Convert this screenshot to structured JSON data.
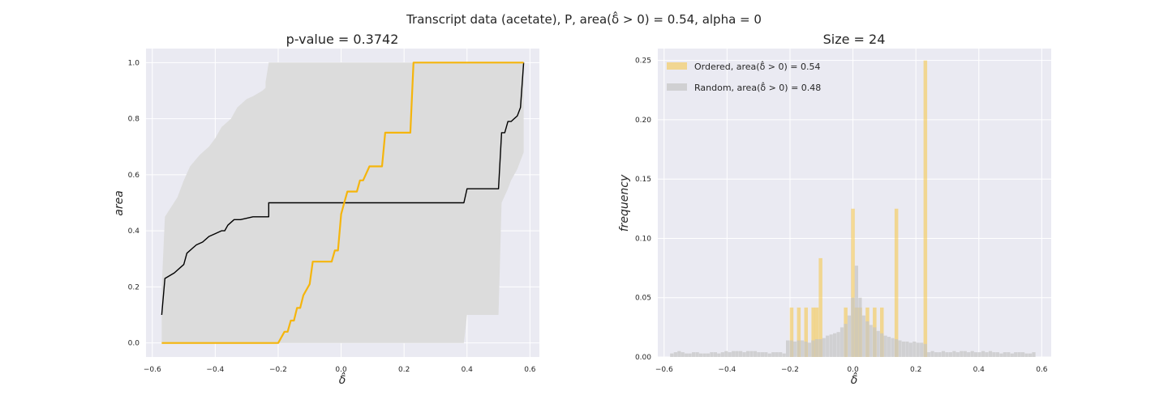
{
  "suptitle": "Transcript data (acetate), P, area(δ̂ > 0) = 0.54, alpha = 0",
  "chart_data": [
    {
      "type": "line",
      "title": "p-value = 0.3742",
      "xlabel": "δ̂",
      "ylabel": "area",
      "xlim": [
        -0.62,
        0.63
      ],
      "ylim": [
        -0.05,
        1.05
      ],
      "xticks": [
        "−0.6",
        "−0.4",
        "−0.2",
        "0.0",
        "0.2",
        "0.4",
        "0.6"
      ],
      "yticks": [
        "0.0",
        "0.2",
        "0.4",
        "0.6",
        "0.8",
        "1.0"
      ],
      "grid": true,
      "band": {
        "color": "#dcdcdc",
        "upper": [
          [
            -0.57,
            0.2
          ],
          [
            -0.56,
            0.45
          ],
          [
            -0.52,
            0.52
          ],
          [
            -0.5,
            0.58
          ],
          [
            -0.48,
            0.63
          ],
          [
            -0.45,
            0.67
          ],
          [
            -0.42,
            0.7
          ],
          [
            -0.4,
            0.73
          ],
          [
            -0.38,
            0.77
          ],
          [
            -0.35,
            0.8
          ],
          [
            -0.33,
            0.84
          ],
          [
            -0.3,
            0.87
          ],
          [
            -0.28,
            0.88
          ],
          [
            -0.25,
            0.9
          ],
          [
            -0.24,
            0.91
          ],
          [
            -0.24,
            0.93
          ],
          [
            -0.23,
            1.0
          ],
          [
            0.58,
            1.0
          ]
        ],
        "lower": [
          [
            -0.57,
            0.0
          ],
          [
            0.39,
            0.0
          ],
          [
            0.4,
            0.1
          ],
          [
            0.5,
            0.1
          ],
          [
            0.51,
            0.5
          ],
          [
            0.53,
            0.55
          ],
          [
            0.54,
            0.58
          ],
          [
            0.56,
            0.62
          ],
          [
            0.57,
            0.65
          ],
          [
            0.58,
            0.68
          ]
        ]
      },
      "series": [
        {
          "color": "#000000",
          "points": [
            [
              -0.57,
              0.1
            ],
            [
              -0.56,
              0.23
            ],
            [
              -0.53,
              0.25
            ],
            [
              -0.5,
              0.28
            ],
            [
              -0.49,
              0.32
            ],
            [
              -0.47,
              0.34
            ],
            [
              -0.46,
              0.35
            ],
            [
              -0.44,
              0.36
            ],
            [
              -0.42,
              0.38
            ],
            [
              -0.4,
              0.39
            ],
            [
              -0.38,
              0.4
            ],
            [
              -0.37,
              0.4
            ],
            [
              -0.36,
              0.42
            ],
            [
              -0.35,
              0.43
            ],
            [
              -0.34,
              0.44
            ],
            [
              -0.33,
              0.44
            ],
            [
              -0.32,
              0.44
            ],
            [
              -0.3,
              0.445
            ],
            [
              -0.28,
              0.45
            ],
            [
              -0.27,
              0.45
            ],
            [
              -0.25,
              0.45
            ],
            [
              -0.24,
              0.45
            ],
            [
              -0.23,
              0.45
            ],
            [
              -0.23,
              0.5
            ],
            [
              0.39,
              0.5
            ],
            [
              0.4,
              0.55
            ],
            [
              0.5,
              0.55
            ],
            [
              0.51,
              0.75
            ],
            [
              0.52,
              0.75
            ],
            [
              0.53,
              0.79
            ],
            [
              0.54,
              0.79
            ],
            [
              0.56,
              0.81
            ],
            [
              0.57,
              0.84
            ],
            [
              0.58,
              1.0
            ]
          ]
        },
        {
          "color": "#f5b50c",
          "points": [
            [
              -0.57,
              0.0
            ],
            [
              -0.2,
              0.0
            ],
            [
              -0.18,
              0.04
            ],
            [
              -0.17,
              0.04
            ],
            [
              -0.16,
              0.08
            ],
            [
              -0.15,
              0.08
            ],
            [
              -0.14,
              0.125
            ],
            [
              -0.13,
              0.125
            ],
            [
              -0.12,
              0.17
            ],
            [
              -0.1,
              0.21
            ],
            [
              -0.09,
              0.29
            ],
            [
              -0.03,
              0.29
            ],
            [
              -0.02,
              0.33
            ],
            [
              -0.01,
              0.33
            ],
            [
              0.0,
              0.46
            ],
            [
              0.01,
              0.5
            ],
            [
              0.02,
              0.54
            ],
            [
              0.05,
              0.54
            ],
            [
              0.06,
              0.58
            ],
            [
              0.07,
              0.58
            ],
            [
              0.09,
              0.63
            ],
            [
              0.13,
              0.63
            ],
            [
              0.14,
              0.75
            ],
            [
              0.22,
              0.75
            ],
            [
              0.23,
              1.0
            ],
            [
              0.58,
              1.0
            ]
          ]
        }
      ]
    },
    {
      "type": "bar",
      "title": "Size = 24",
      "xlabel": "δ̂",
      "ylabel": "frequency",
      "xlim": [
        -0.62,
        0.63
      ],
      "ylim": [
        0,
        0.26
      ],
      "xticks": [
        "−0.6",
        "−0.4",
        "−0.2",
        "0.0",
        "0.2",
        "0.4",
        "0.6"
      ],
      "yticks": [
        "0.00",
        "0.05",
        "0.10",
        "0.15",
        "0.20",
        "0.25"
      ],
      "grid": true,
      "legend": {
        "placement": "top-left"
      },
      "series": [
        {
          "name": "Ordered, area(δ̂ > 0) = 0.54",
          "color": "#f5c542",
          "bin_width": 0.0115,
          "bars": [
            [
              -0.195,
              0.0417
            ],
            [
              -0.172,
              0.0417
            ],
            [
              -0.149,
              0.0417
            ],
            [
              -0.126,
              0.0417
            ],
            [
              -0.115,
              0.0417
            ],
            [
              -0.103,
              0.0833
            ],
            [
              -0.023,
              0.0417
            ],
            [
              -0.0115,
              0.0
            ],
            [
              0.0,
              0.125
            ],
            [
              0.0115,
              0.0417
            ],
            [
              0.023,
              0.0417
            ],
            [
              0.046,
              0.0417
            ],
            [
              0.069,
              0.0417
            ],
            [
              0.092,
              0.0417
            ],
            [
              0.138,
              0.125
            ],
            [
              0.23,
              0.25
            ]
          ]
        },
        {
          "name": "Random, area(δ̂ > 0) = 0.48",
          "color": "#c4c4c4",
          "bin_width": 0.0115,
          "x_start": -0.575,
          "values": [
            0.003,
            0.004,
            0.005,
            0.004,
            0.003,
            0.003,
            0.004,
            0.004,
            0.003,
            0.003,
            0.003,
            0.004,
            0.004,
            0.003,
            0.004,
            0.005,
            0.004,
            0.005,
            0.005,
            0.005,
            0.004,
            0.005,
            0.005,
            0.005,
            0.004,
            0.004,
            0.004,
            0.003,
            0.004,
            0.004,
            0.004,
            0.003,
            0.014,
            0.014,
            0.013,
            0.014,
            0.014,
            0.013,
            0.012,
            0.014,
            0.015,
            0.015,
            0.016,
            0.018,
            0.019,
            0.02,
            0.021,
            0.025,
            0.028,
            0.035,
            0.05,
            0.077,
            0.05,
            0.035,
            0.03,
            0.027,
            0.025,
            0.022,
            0.02,
            0.018,
            0.017,
            0.016,
            0.015,
            0.014,
            0.013,
            0.013,
            0.012,
            0.013,
            0.012,
            0.012,
            0.011,
            0.004,
            0.005,
            0.004,
            0.004,
            0.005,
            0.004,
            0.004,
            0.005,
            0.004,
            0.005,
            0.005,
            0.004,
            0.005,
            0.004,
            0.004,
            0.005,
            0.004,
            0.005,
            0.004,
            0.004,
            0.003,
            0.004,
            0.004,
            0.003,
            0.004,
            0.004,
            0.004,
            0.003,
            0.003,
            0.004
          ]
        }
      ]
    }
  ]
}
